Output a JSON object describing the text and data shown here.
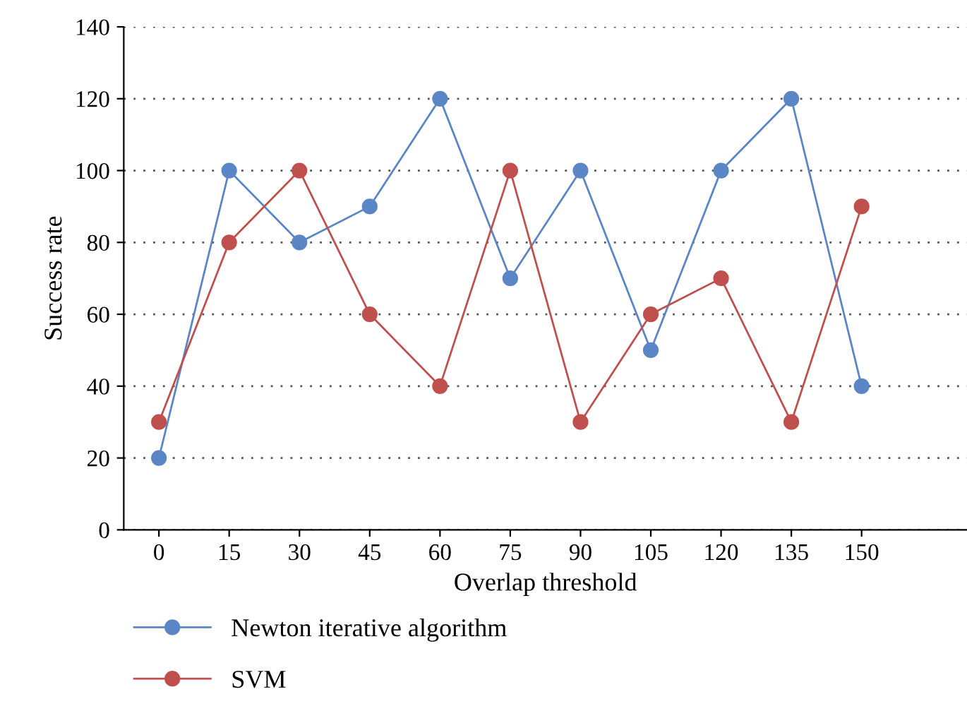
{
  "chart_data": {
    "type": "line",
    "xlabel": "Overlap threshold",
    "ylabel": "Success rate",
    "x": [
      0,
      15,
      30,
      45,
      60,
      75,
      90,
      105,
      120,
      135,
      150
    ],
    "xlim": [
      -7.5,
      172.5
    ],
    "xticks": [
      0,
      15,
      30,
      45,
      60,
      75,
      90,
      105,
      120,
      135,
      150
    ],
    "ylim": [
      0,
      140
    ],
    "yticks": [
      0,
      20,
      40,
      60,
      80,
      100,
      120,
      140
    ],
    "grid": "y",
    "legend": "bottom",
    "marker": "circle",
    "line_style": "solid",
    "series": [
      {
        "name": "Newton iterative algorithm",
        "color": "#5b86c5",
        "values": [
          20,
          100,
          80,
          90,
          120,
          70,
          100,
          50,
          100,
          120,
          40
        ]
      },
      {
        "name": "SVM",
        "color": "#c0504d",
        "values": [
          30,
          80,
          100,
          60,
          40,
          100,
          30,
          60,
          70,
          30,
          90
        ]
      }
    ]
  }
}
